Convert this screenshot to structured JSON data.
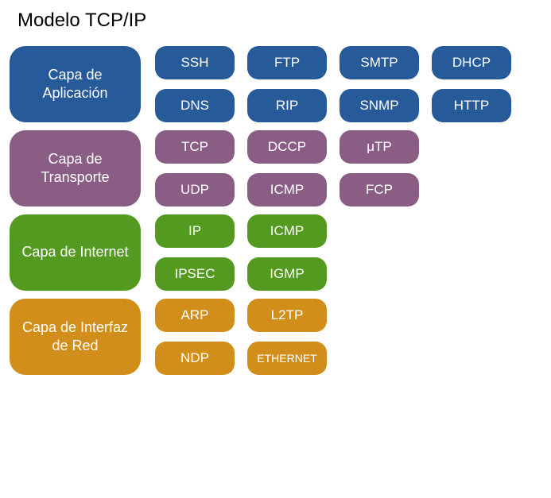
{
  "title": "Modelo TCP/IP",
  "layers": [
    {
      "id": "application",
      "label": "Capa de Aplicación",
      "color": "#275a99",
      "rows": [
        [
          {
            "id": "ssh",
            "label": "SSH"
          },
          {
            "id": "ftp",
            "label": "FTP"
          },
          {
            "id": "smtp",
            "label": "SMTP"
          },
          {
            "id": "dhcp",
            "label": "DHCP"
          }
        ],
        [
          {
            "id": "dns",
            "label": "DNS"
          },
          {
            "id": "rip",
            "label": "RIP"
          },
          {
            "id": "snmp",
            "label": "SNMP"
          },
          {
            "id": "http",
            "label": "HTTP"
          }
        ]
      ]
    },
    {
      "id": "transport",
      "label": "Capa de Transporte",
      "color": "#8a5d85",
      "rows": [
        [
          {
            "id": "tcp",
            "label": "TCP"
          },
          {
            "id": "dccp",
            "label": "DCCP"
          },
          {
            "id": "utp",
            "label": "μTP"
          }
        ],
        [
          {
            "id": "udp",
            "label": "UDP"
          },
          {
            "id": "icmp-t",
            "label": "ICMP"
          },
          {
            "id": "fcp",
            "label": "FCP"
          }
        ]
      ]
    },
    {
      "id": "internet",
      "label": "Capa de Internet",
      "color": "#549a21",
      "rows": [
        [
          {
            "id": "ip",
            "label": "IP"
          },
          {
            "id": "icmp-i",
            "label": "ICMP"
          }
        ],
        [
          {
            "id": "ipsec",
            "label": "IPSEC"
          },
          {
            "id": "igmp",
            "label": "IGMP"
          }
        ]
      ]
    },
    {
      "id": "network-interface",
      "label": "Capa de Interfaz de Red",
      "color": "#d28e1b",
      "rows": [
        [
          {
            "id": "arp",
            "label": "ARP"
          },
          {
            "id": "l2tp",
            "label": "L2TP"
          }
        ],
        [
          {
            "id": "ndp",
            "label": "NDP"
          },
          {
            "id": "ethernet",
            "label": "ETHERNET",
            "small": true
          }
        ]
      ]
    }
  ]
}
